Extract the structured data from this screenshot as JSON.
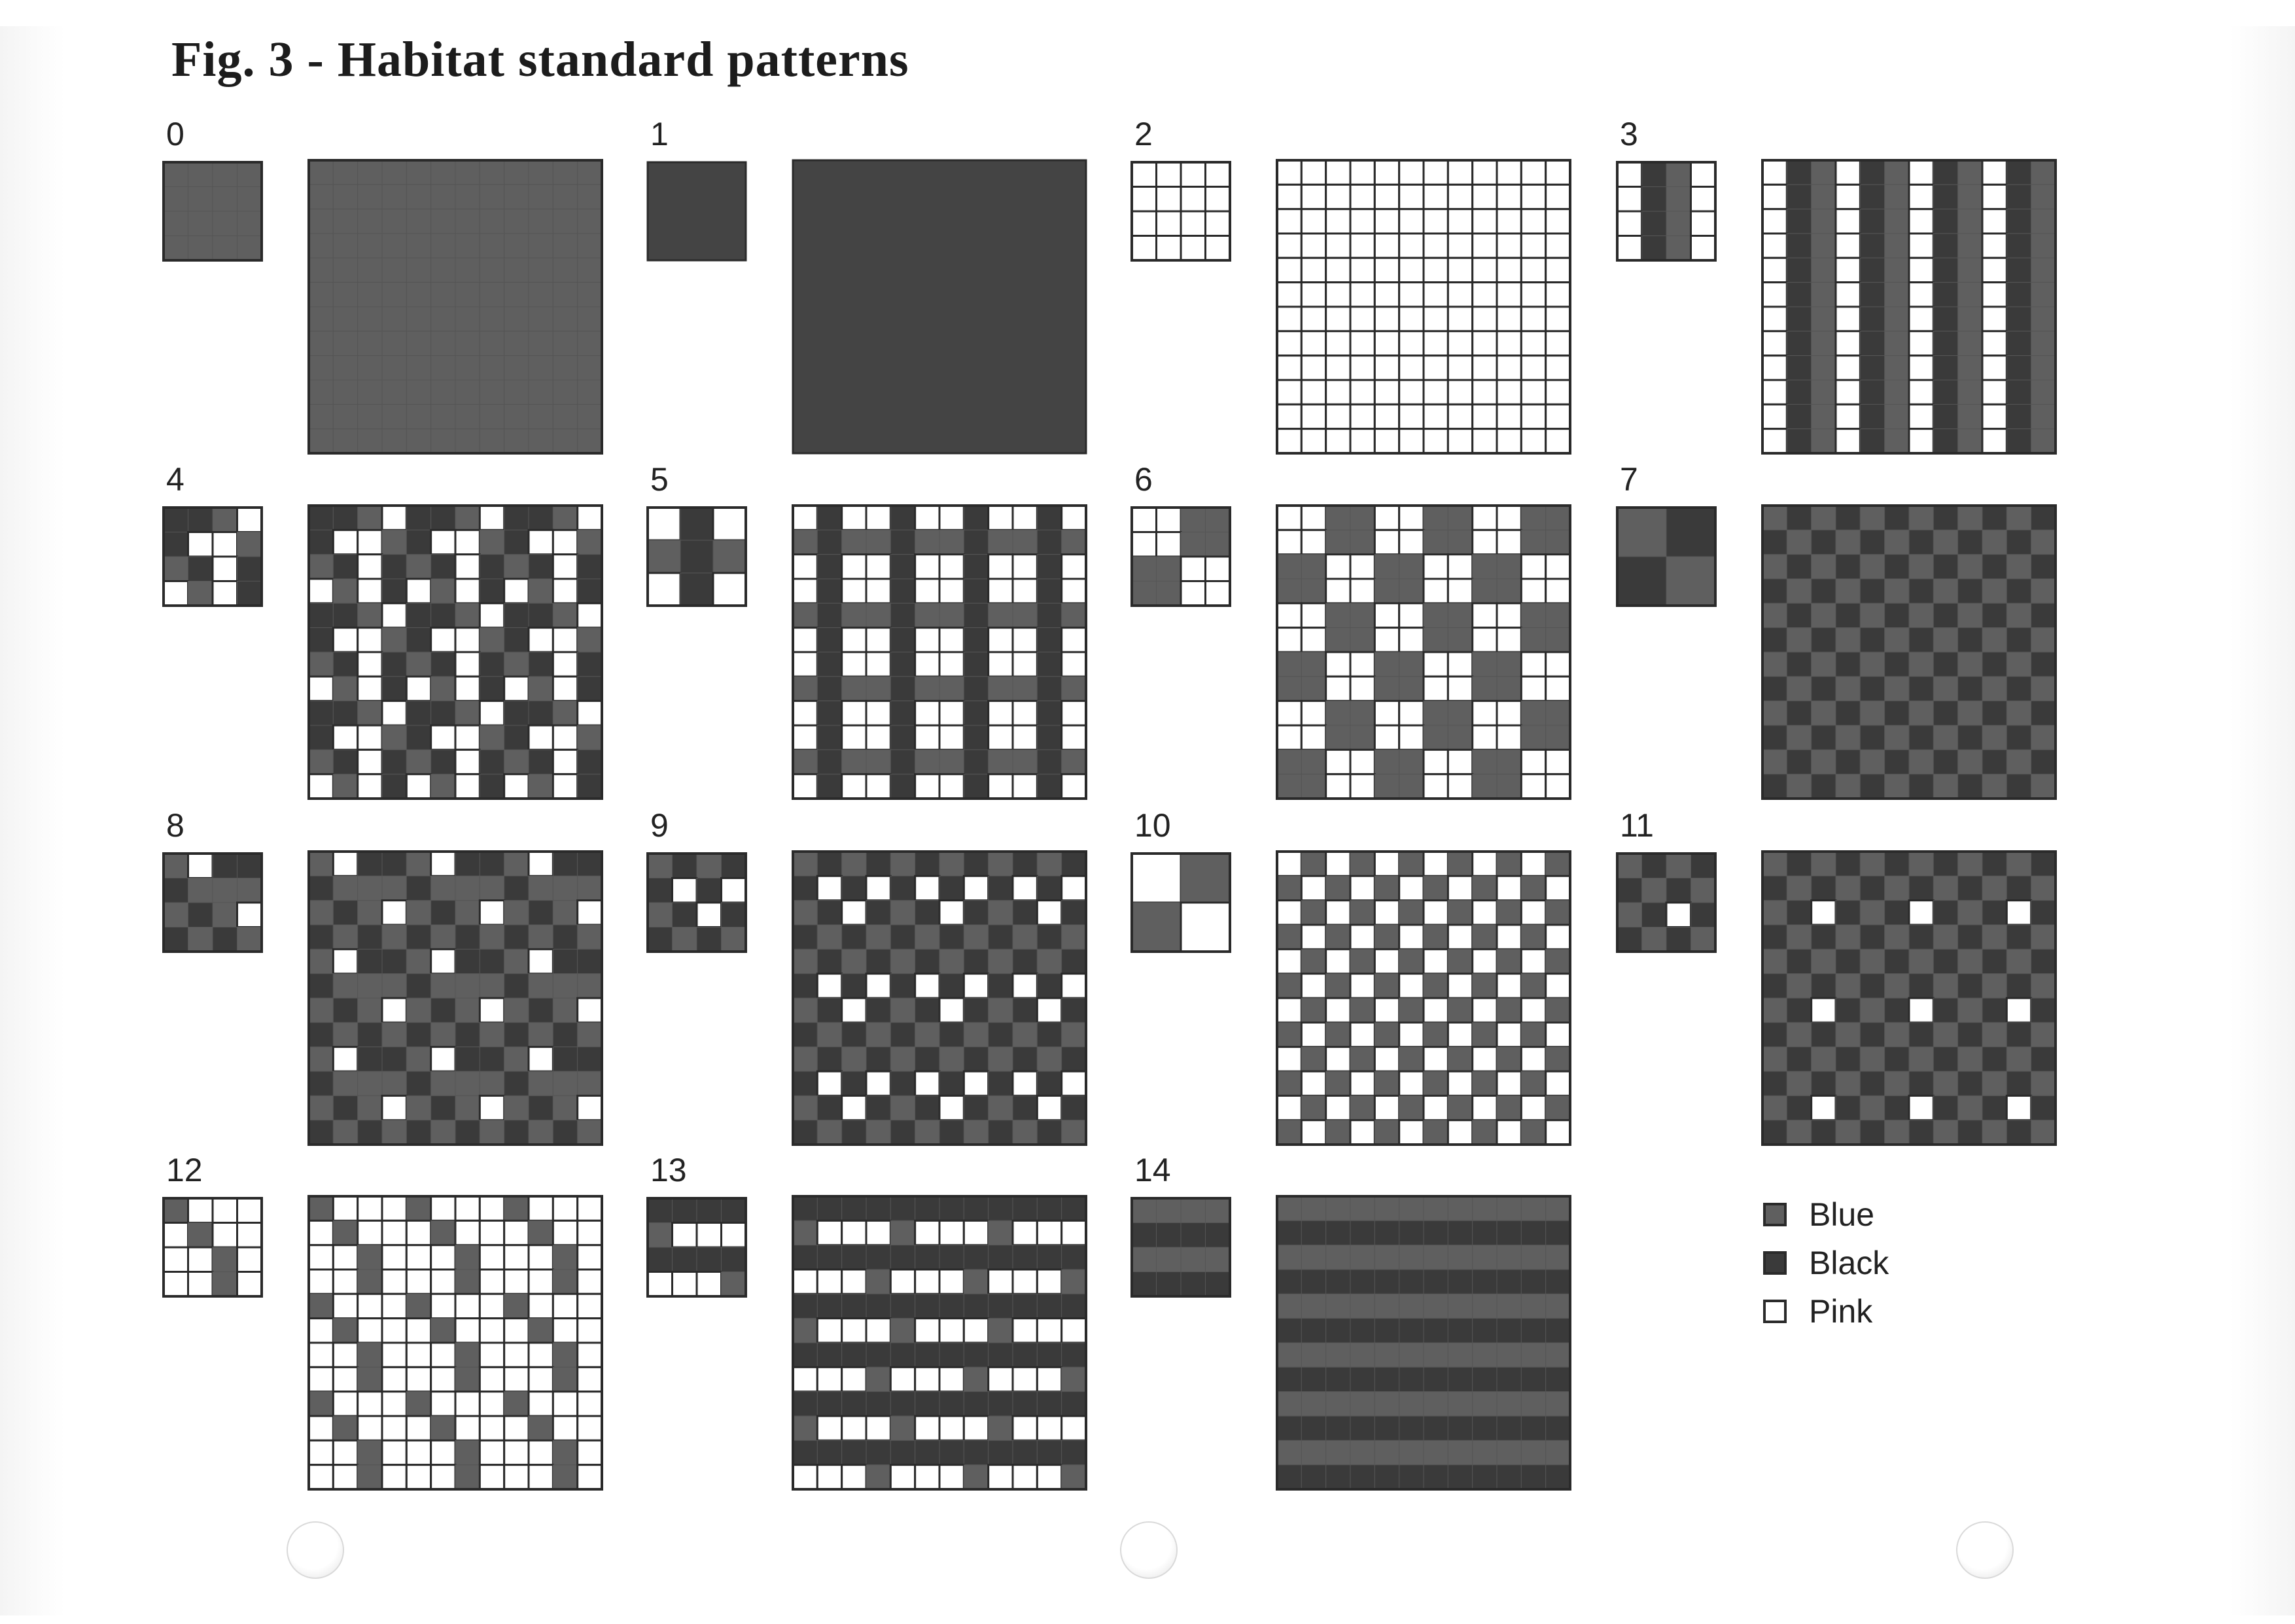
{
  "title": "Fig. 3 - Habitat standard patterns",
  "colors": {
    "blue": "#5f5f5f",
    "black": "#3a3a3a",
    "pink": "#ffffff",
    "solid": "#444444",
    "line": "#2a2a2a"
  },
  "legend": [
    {
      "key": "blue",
      "label": "Blue"
    },
    {
      "key": "black",
      "label": "Black"
    },
    {
      "key": "pink",
      "label": "Pink"
    }
  ],
  "patterns": [
    {
      "label": "0",
      "tile": [
        "B",
        "B",
        "B",
        "B"
      ]
    },
    {
      "label": "1",
      "tile": [
        "S"
      ]
    },
    {
      "label": "2",
      "tile": [
        "P",
        "P",
        "P",
        "P"
      ]
    },
    {
      "label": "3",
      "tile": [
        "PKB",
        "PKB",
        "PKB",
        "PKB"
      ]
    },
    {
      "label": "4",
      "tile": [
        "KKBP",
        "KPPB",
        "BKPK",
        "PBPK"
      ]
    },
    {
      "label": "5",
      "tile": [
        "PKP",
        "BKB",
        "PKP"
      ]
    },
    {
      "label": "6",
      "tile": [
        "PPBB",
        "PPBB",
        "BBPP",
        "BBPP"
      ]
    },
    {
      "label": "7",
      "tile": [
        "BK",
        "KB"
      ]
    },
    {
      "label": "8",
      "tile": [
        "BPKK",
        "KBBB",
        "BKBP",
        "KBKB"
      ]
    },
    {
      "label": "9",
      "tile": [
        "BKBK",
        "KPKP",
        "BKPK",
        "KBKB"
      ]
    },
    {
      "label": "10",
      "tile": [
        "PB",
        "BP"
      ]
    },
    {
      "label": "11",
      "tile": [
        "BKBK",
        "KBKB",
        "BKPK",
        "KBKB"
      ]
    },
    {
      "label": "12",
      "tile": [
        "BPPP",
        "PBPP",
        "PPBP",
        "PPBP"
      ]
    },
    {
      "label": "13",
      "tile": [
        "KKKK",
        "BPPP",
        "KKKK",
        "PPPB"
      ]
    },
    {
      "label": "14",
      "tile": [
        "BBBB",
        "KKKK"
      ]
    }
  ]
}
